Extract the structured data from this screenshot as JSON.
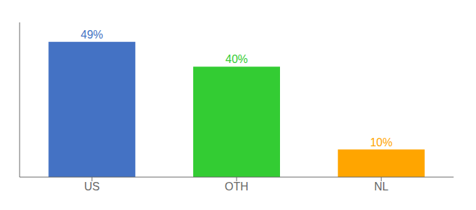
{
  "chart_data": {
    "type": "bar",
    "categories": [
      "US",
      "OTH",
      "NL"
    ],
    "values": [
      49,
      40,
      10
    ],
    "value_labels": [
      "49%",
      "40%",
      "10%"
    ],
    "colors": [
      "#4472C4",
      "#33CC33",
      "#FFA500"
    ],
    "ylim": [
      0,
      56
    ],
    "yticks": [],
    "tick_labels": "x",
    "data_labels": true
  }
}
